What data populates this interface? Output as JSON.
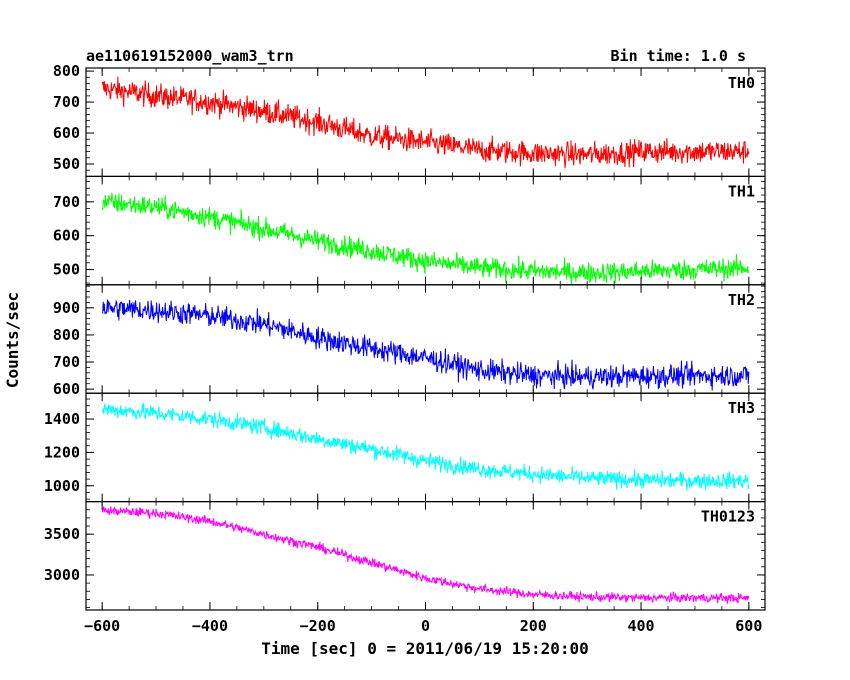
{
  "header": {
    "title": "ae110619152000_wam3_trn",
    "bin_time": "Bin time: 1.0 s"
  },
  "chart_data": {
    "type": "line",
    "xlabel": "Time [sec] 0 = 2011/06/19 15:20:00",
    "ylabel": "Counts/sec",
    "xlim": [
      -630,
      630
    ],
    "x_ticks": [
      -600,
      -400,
      -200,
      0,
      200,
      400,
      600
    ],
    "x_tick_labels": [
      "−600",
      "−400",
      "−200",
      "0",
      "200",
      "400",
      "600"
    ],
    "grid": false,
    "panels": [
      {
        "name": "TH0",
        "color": "#ff0000",
        "ylim": [
          460,
          810
        ],
        "y_ticks": [
          500,
          600,
          700,
          800
        ],
        "x": [
          -600,
          -500,
          -400,
          -300,
          -200,
          -100,
          0,
          100,
          200,
          300,
          400,
          500,
          600
        ],
        "y": [
          745,
          720,
          700,
          670,
          635,
          590,
          570,
          545,
          535,
          530,
          540,
          540,
          540
        ],
        "noise": 28
      },
      {
        "name": "TH1",
        "color": "#00ff00",
        "ylim": [
          455,
          775
        ],
        "y_ticks": [
          500,
          600,
          700
        ],
        "x": [
          -600,
          -500,
          -400,
          -300,
          -200,
          -100,
          0,
          100,
          200,
          300,
          400,
          500,
          600
        ],
        "y": [
          700,
          685,
          655,
          620,
          585,
          555,
          525,
          505,
          495,
          490,
          495,
          500,
          505
        ],
        "noise": 22
      },
      {
        "name": "TH2",
        "color": "#0000ff",
        "ylim": [
          585,
          985
        ],
        "y_ticks": [
          600,
          700,
          800,
          900
        ],
        "x": [
          -600,
          -500,
          -400,
          -300,
          -200,
          -100,
          0,
          100,
          200,
          300,
          400,
          500,
          600
        ],
        "y": [
          900,
          890,
          870,
          840,
          790,
          750,
          715,
          670,
          650,
          645,
          648,
          650,
          650
        ],
        "noise": 30
      },
      {
        "name": "TH3",
        "color": "#00ffff",
        "ylim": [
          905,
          1555
        ],
        "y_ticks": [
          1000,
          1200,
          1400
        ],
        "x": [
          -600,
          -500,
          -400,
          -300,
          -200,
          -100,
          0,
          100,
          200,
          300,
          400,
          500,
          600
        ],
        "y": [
          1460,
          1435,
          1400,
          1350,
          1280,
          1220,
          1150,
          1100,
          1070,
          1045,
          1035,
          1030,
          1030
        ],
        "noise": 35
      },
      {
        "name": "TH0123",
        "color": "#ff00ff",
        "ylim": [
          2570,
          3900
        ],
        "y_ticks": [
          3000,
          3500
        ],
        "x": [
          -600,
          -500,
          -400,
          -300,
          -200,
          -100,
          0,
          100,
          200,
          300,
          400,
          500,
          600
        ],
        "y": [
          3790,
          3760,
          3660,
          3500,
          3340,
          3150,
          2960,
          2830,
          2760,
          2730,
          2720,
          2720,
          2715
        ],
        "noise": 40
      }
    ]
  }
}
